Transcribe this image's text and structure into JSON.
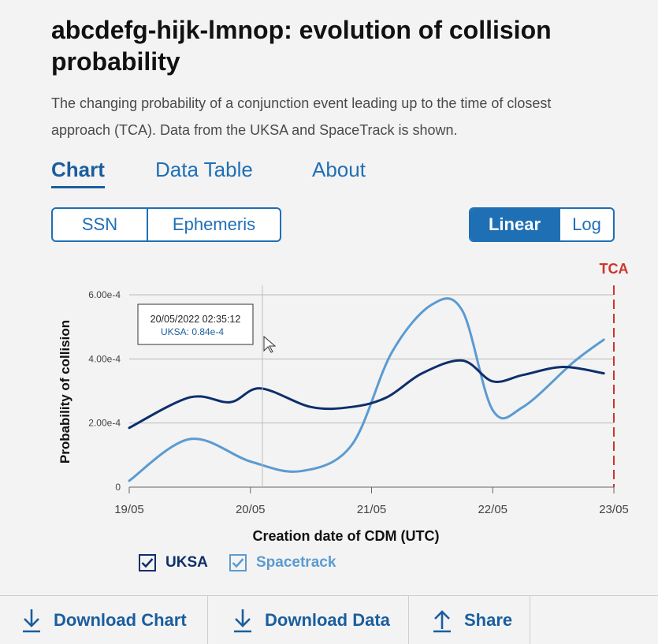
{
  "header": {
    "title": "abcdefg-hijk-lmnop: evolution of collision probability",
    "subtitle": "The changing probability of a conjunction event leading up to the time of closest approach (TCA). Data from the UKSA and SpaceTrack is shown."
  },
  "tabs": [
    {
      "label": "Chart",
      "active": true
    },
    {
      "label": "Data Table",
      "active": false
    },
    {
      "label": "About",
      "active": false
    }
  ],
  "source_toggle": [
    {
      "label": "SSN",
      "selected": false
    },
    {
      "label": "Ephemeris",
      "selected": false
    }
  ],
  "scale_toggle": [
    {
      "label": "Linear",
      "selected": true
    },
    {
      "label": "Log",
      "selected": false
    }
  ],
  "tooltip": {
    "date": "20/05/2022 02:35:12",
    "text": "UKSA: 0.84e-4"
  },
  "legend": [
    {
      "label": "UKSA",
      "color": "#0d2f6b",
      "checked": true
    },
    {
      "label": "Spacetrack",
      "color": "#5b9bd1",
      "checked": true
    }
  ],
  "footer": {
    "download_chart": "Download Chart",
    "download_data": "Download Data",
    "share": "Share"
  },
  "chart_data": {
    "type": "line",
    "title": "",
    "xlabel": "Creation date of CDM (UTC)",
    "ylabel": "Probability of collision",
    "x_ticks": [
      "19/05",
      "20/05",
      "21/05",
      "22/05",
      "23/05"
    ],
    "y_ticks": [
      "0",
      "2.00e-4",
      "4.00e-4",
      "6.00e-4"
    ],
    "ylim": [
      0,
      0.0006
    ],
    "grid": "horizontal",
    "tca": {
      "label": "TCA",
      "date": "23/05",
      "color": "#d0342c"
    },
    "series": [
      {
        "name": "UKSA",
        "color": "#0d2f6b",
        "points": [
          [
            "19/05 00:00",
            0.000185
          ],
          [
            "19/05 12:00",
            0.00028
          ],
          [
            "19/05 20:00",
            0.000265
          ],
          [
            "20/05 02:00",
            0.000308
          ],
          [
            "20/05 12:00",
            0.00025
          ],
          [
            "20/05 20:00",
            0.00025
          ],
          [
            "21/05 03:00",
            0.00028
          ],
          [
            "21/05 10:00",
            0.000355
          ],
          [
            "21/05 18:00",
            0.000395
          ],
          [
            "22/05 00:00",
            0.00033
          ],
          [
            "22/05 06:00",
            0.00035
          ],
          [
            "22/05 14:00",
            0.000375
          ],
          [
            "22/05 22:00",
            0.000355
          ]
        ]
      },
      {
        "name": "Spacetrack",
        "color": "#5b9bd1",
        "points": [
          [
            "19/05 00:00",
            2e-05
          ],
          [
            "19/05 12:00",
            0.00015
          ],
          [
            "20/05 00:00",
            8e-05
          ],
          [
            "20/05 10:00",
            5e-05
          ],
          [
            "20/05 20:00",
            0.00013
          ],
          [
            "21/05 04:00",
            0.00042
          ],
          [
            "21/05 12:00",
            0.00057
          ],
          [
            "21/05 18:00",
            0.00055
          ],
          [
            "22/05 00:00",
            0.00024
          ],
          [
            "22/05 06:00",
            0.00025
          ],
          [
            "22/05 16:00",
            0.00039
          ],
          [
            "22/05 22:00",
            0.00046
          ]
        ]
      }
    ]
  }
}
